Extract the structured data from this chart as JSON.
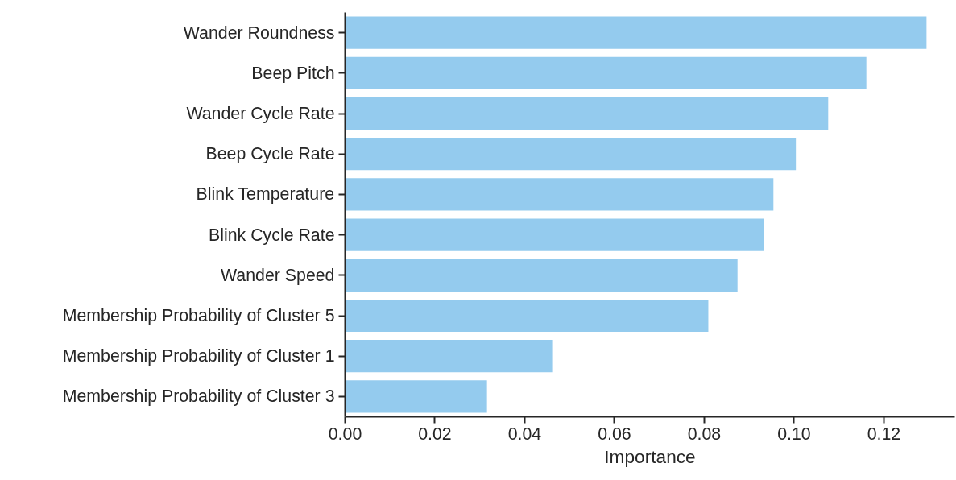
{
  "chart_data": {
    "type": "bar",
    "orientation": "horizontal",
    "xlabel": "Importance",
    "categories": [
      "Wander Roundness",
      "Beep Pitch",
      "Wander Cycle Rate",
      "Beep Cycle Rate",
      "Blink Temperature",
      "Blink Cycle Rate",
      "Wander Speed",
      "Membership Probability of Cluster 5",
      "Membership Probability of Cluster 1",
      "Membership Probability of Cluster 3"
    ],
    "values": [
      0.1295,
      0.1161,
      0.1076,
      0.1004,
      0.0954,
      0.0933,
      0.0874,
      0.0809,
      0.0463,
      0.0316
    ],
    "color": "#94cbee",
    "xlim": [
      0,
      0.1358
    ],
    "xticks": [
      {
        "value": 0,
        "label": "0.00"
      },
      {
        "value": 0.02,
        "label": "0.02"
      },
      {
        "value": 0.04,
        "label": "0.04"
      },
      {
        "value": 0.06,
        "label": "0.06"
      },
      {
        "value": 0.08,
        "label": "0.08"
      },
      {
        "value": 0.1,
        "label": "0.10"
      },
      {
        "value": 0.12,
        "label": "0.12"
      }
    ],
    "grid": false
  }
}
